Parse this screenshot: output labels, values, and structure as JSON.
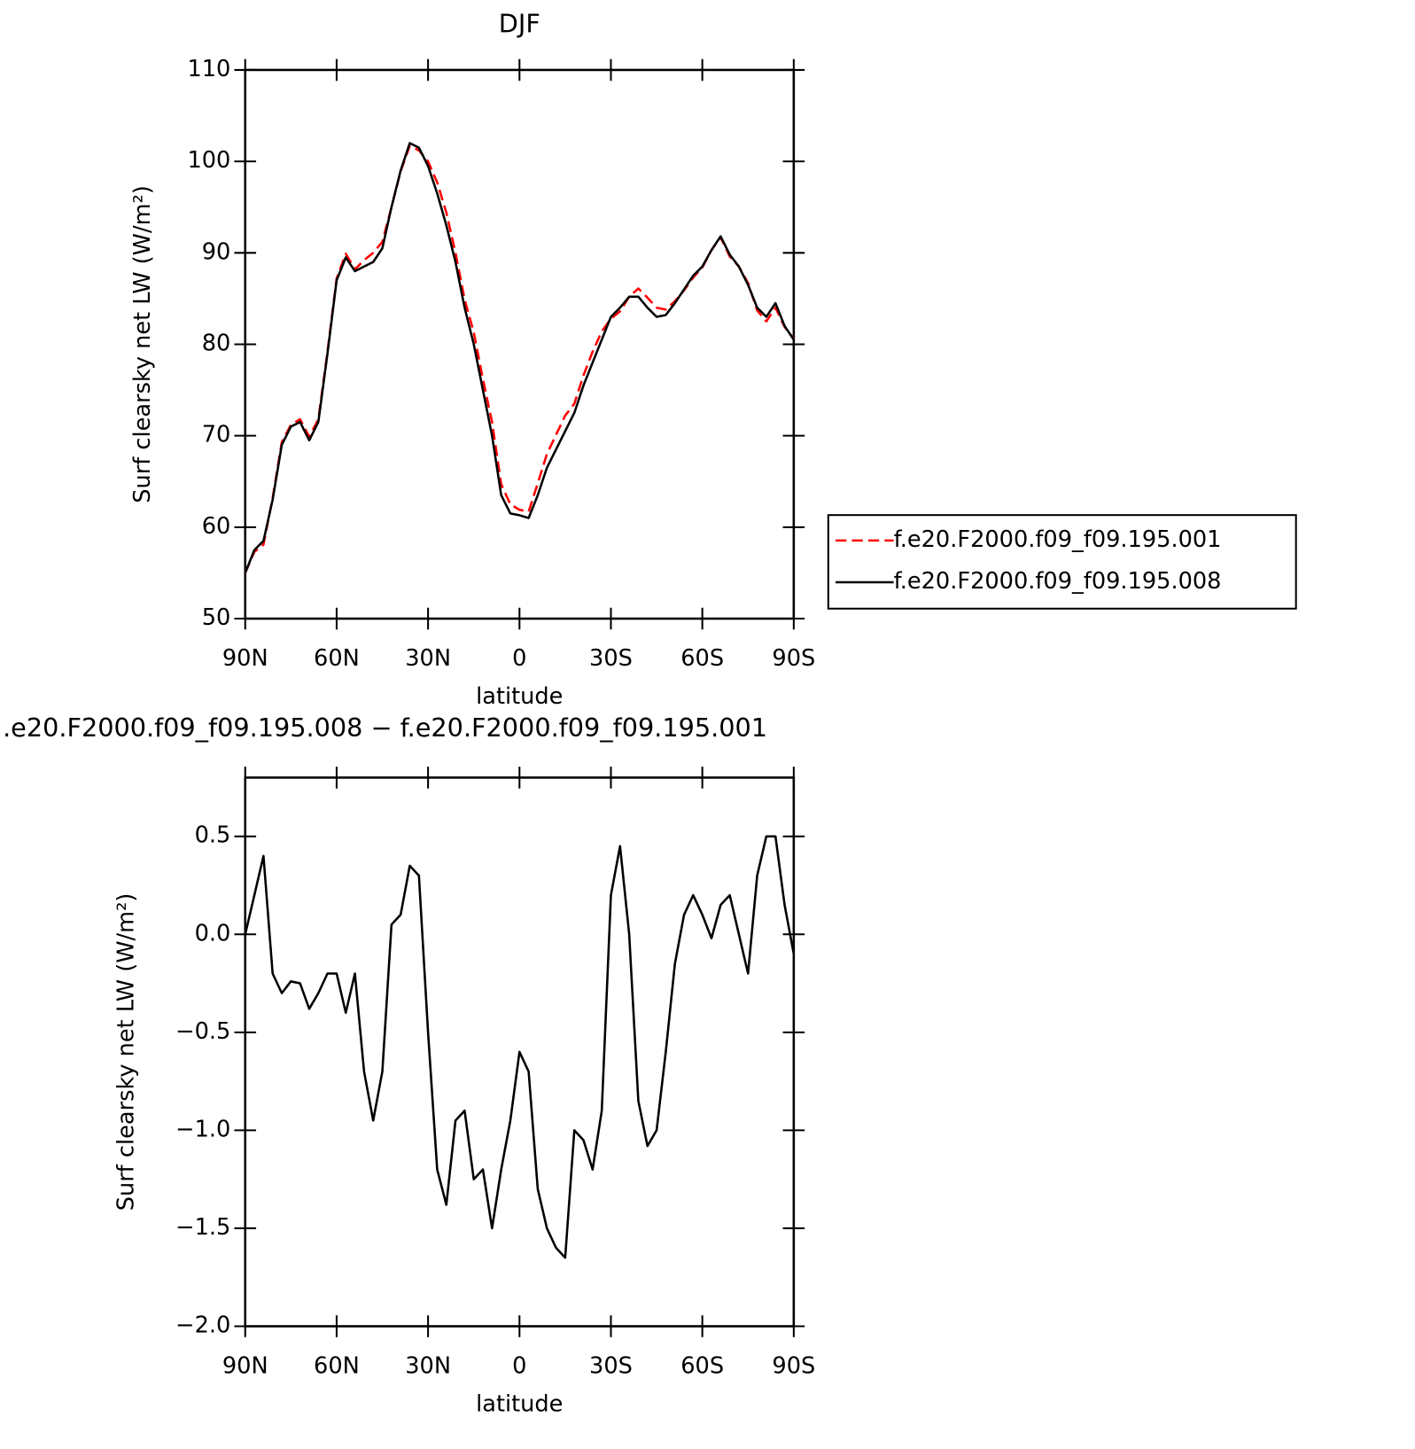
{
  "chart_data": [
    {
      "type": "line",
      "title": "DJF",
      "xlabel": "latitude",
      "ylabel": "Surf clearsky net LW (W/m²)",
      "x": [
        90,
        87,
        84,
        81,
        78,
        75,
        72,
        69,
        66,
        63,
        60,
        57,
        54,
        51,
        48,
        45,
        42,
        39,
        36,
        33,
        30,
        27,
        24,
        21,
        18,
        15,
        12,
        9,
        6,
        3,
        0,
        -3,
        -6,
        -9,
        -12,
        -15,
        -18,
        -21,
        -24,
        -27,
        -30,
        -33,
        -36,
        -39,
        -42,
        -45,
        -48,
        -51,
        -54,
        -57,
        -60,
        -63,
        -66,
        -69,
        -72,
        -75,
        -78,
        -81,
        -84,
        -87,
        -90
      ],
      "series": [
        {
          "name": "f.e20.F2000.f09_f09.195.001",
          "color": "#ff0000",
          "dashed": true,
          "values": [
            55,
            57.3,
            58.1,
            63.2,
            69.3,
            71.2,
            71.8,
            69.9,
            71.8,
            79.2,
            87.2,
            89.9,
            88.2,
            89.2,
            90,
            91.2,
            95,
            98.9,
            101.7,
            101.2,
            100,
            97.7,
            94.4,
            90,
            84.9,
            81.3,
            76.2,
            71.5,
            64.7,
            62.5,
            61.9,
            61.7,
            64.8,
            68,
            70.1,
            72.2,
            73.5,
            76.6,
            79.2,
            81.4,
            82.8,
            83.6,
            85.2,
            86.1,
            85.1,
            84,
            83.8,
            84.7,
            85.9,
            87.3,
            88.4,
            90.3,
            91.7,
            89.6,
            88.5,
            86.7,
            83.7,
            82.5,
            84,
            81.9,
            80.6
          ]
        },
        {
          "name": "f.e20.F2000.f09_f09.195.008",
          "color": "#000000",
          "dashed": false,
          "values": [
            55,
            57.5,
            58.5,
            63,
            69,
            71,
            71.5,
            69.5,
            71.5,
            79,
            87,
            89.5,
            88,
            88.5,
            89,
            90.5,
            95,
            99,
            102,
            101.5,
            99.5,
            96.5,
            93,
            89,
            84,
            80,
            75,
            70,
            63.5,
            61.5,
            61.3,
            61,
            63.5,
            66.5,
            68.5,
            70.5,
            72.5,
            75.5,
            78,
            80.5,
            83,
            84,
            85.2,
            85.2,
            84,
            83,
            83.2,
            84.5,
            86,
            87.5,
            88.5,
            90.3,
            91.8,
            89.8,
            88.5,
            86.5,
            84,
            83,
            84.5,
            82,
            80.5
          ]
        }
      ],
      "xlim": [
        90,
        -90
      ],
      "xticks": [
        {
          "value": 90,
          "label": "90N"
        },
        {
          "value": 60,
          "label": "60N"
        },
        {
          "value": 30,
          "label": "30N"
        },
        0,
        {
          "value": -30,
          "label": "30S"
        },
        {
          "value": -60,
          "label": "60S"
        },
        {
          "value": -90,
          "label": "90S"
        }
      ],
      "ylim": [
        50,
        110
      ],
      "yticks": [
        50,
        60,
        70,
        80,
        90,
        100,
        110
      ],
      "legend": "right"
    },
    {
      "type": "line",
      "title": ".e20.F2000.f09_f09.195.008 − f.e20.F2000.f09_f09.195.001",
      "xlabel": "latitude",
      "ylabel": "Surf clearsky net LW (W/m²)",
      "x": [
        90,
        87,
        84,
        81,
        78,
        75,
        72,
        69,
        66,
        63,
        60,
        57,
        54,
        51,
        48,
        45,
        42,
        39,
        36,
        33,
        30,
        27,
        24,
        21,
        18,
        15,
        12,
        9,
        6,
        3,
        0,
        -3,
        -6,
        -9,
        -12,
        -15,
        -18,
        -21,
        -24,
        -27,
        -30,
        -33,
        -36,
        -39,
        -42,
        -45,
        -48,
        -51,
        -54,
        -57,
        -60,
        -63,
        -66,
        -69,
        -72,
        -75,
        -78,
        -81,
        -84,
        -87,
        -90
      ],
      "values": [
        0,
        0.2,
        0.4,
        -0.2,
        -0.3,
        -0.24,
        -0.25,
        -0.38,
        -0.3,
        -0.2,
        -0.2,
        -0.4,
        -0.2,
        -0.7,
        -0.95,
        -0.7,
        0.05,
        0.1,
        0.35,
        0.3,
        -0.5,
        -1.2,
        -1.38,
        -0.95,
        -0.9,
        -1.25,
        -1.2,
        -1.5,
        -1.2,
        -0.95,
        -0.6,
        -0.7,
        -1.3,
        -1.5,
        -1.6,
        -1.65,
        -1.0,
        -1.05,
        -1.2,
        -0.9,
        0.2,
        0.45,
        0,
        -0.85,
        -1.08,
        -1.0,
        -0.6,
        -0.15,
        0.1,
        0.2,
        0.1,
        -0.02,
        0.15,
        0.2,
        0.0,
        -0.2,
        0.3,
        0.5,
        0.5,
        0.15,
        -0.1
      ],
      "color": "#000000",
      "xlim": [
        90,
        -90
      ],
      "xticks": [
        {
          "value": 90,
          "label": "90N"
        },
        {
          "value": 60,
          "label": "60N"
        },
        {
          "value": 30,
          "label": "30N"
        },
        0,
        {
          "value": -30,
          "label": "30S"
        },
        {
          "value": -60,
          "label": "60S"
        },
        {
          "value": -90,
          "label": "90S"
        }
      ],
      "ylim": [
        -2.0,
        0.8
      ],
      "yticks": [
        {
          "value": -2.0,
          "label": "−2.0"
        },
        {
          "value": -1.5,
          "label": "−1.5"
        },
        {
          "value": -1.0,
          "label": "−1.0"
        },
        {
          "value": -0.5,
          "label": "−0.5"
        },
        {
          "value": 0.0,
          "label": "0.0"
        },
        0.5
      ]
    }
  ]
}
